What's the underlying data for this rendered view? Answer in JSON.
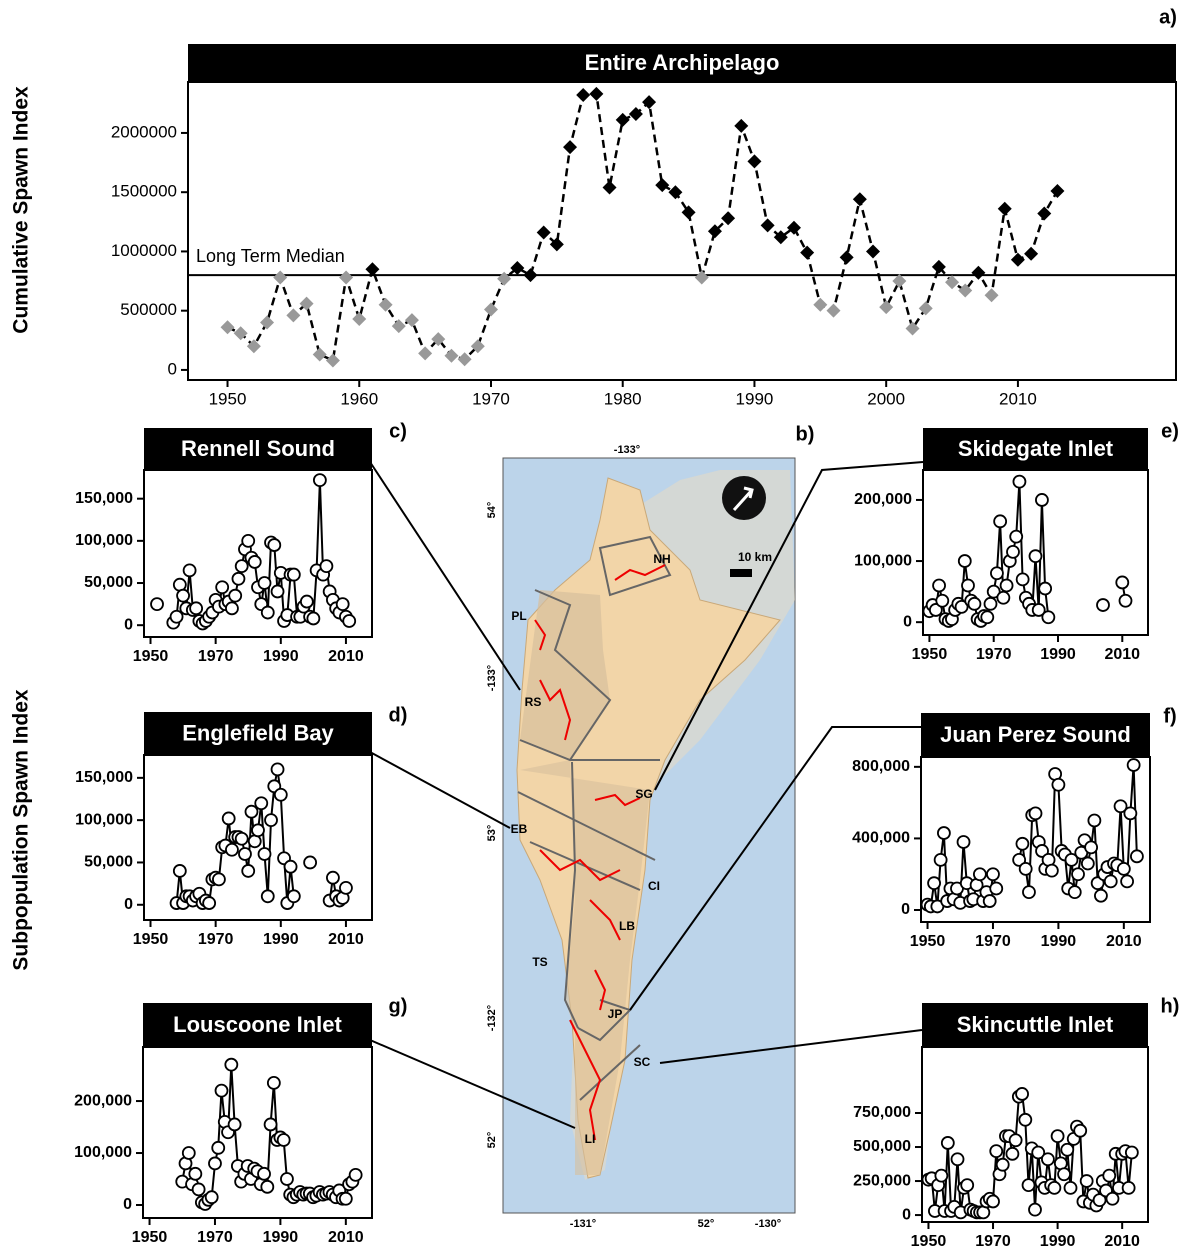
{
  "chart_data": [
    {
      "type": "line",
      "panel_label": "a)",
      "title": "Entire Archipelago",
      "ylabel": "Cumulative Spawn Index",
      "annotation": "Long Term Median",
      "median": 800000,
      "color": "#000000",
      "below_median_color": "#999999",
      "marker": "diamond",
      "line_style": "dashed",
      "x": [
        1950,
        1951,
        1952,
        1953,
        1954,
        1955,
        1956,
        1957,
        1958,
        1959,
        1960,
        1961,
        1962,
        1963,
        1964,
        1965,
        1966,
        1967,
        1968,
        1969,
        1970,
        1971,
        1972,
        1973,
        1974,
        1975,
        1976,
        1977,
        1978,
        1979,
        1980,
        1981,
        1982,
        1983,
        1984,
        1985,
        1986,
        1987,
        1988,
        1989,
        1990,
        1991,
        1992,
        1993,
        1994,
        1995,
        1996,
        1997,
        1998,
        1999,
        2000,
        2001,
        2002,
        2003,
        2004,
        2005,
        2006,
        2007,
        2008,
        2009,
        2010,
        2011,
        2012,
        2013
      ],
      "values": [
        360000,
        310000,
        200000,
        400000,
        780000,
        460000,
        560000,
        130000,
        80000,
        780000,
        430000,
        850000,
        550000,
        370000,
        420000,
        140000,
        260000,
        120000,
        90000,
        200000,
        510000,
        770000,
        860000,
        800000,
        1160000,
        1060000,
        1880000,
        2320000,
        2330000,
        1540000,
        2110000,
        2160000,
        2260000,
        1560000,
        1500000,
        1330000,
        780000,
        1170000,
        1280000,
        2060000,
        1760000,
        1220000,
        1120000,
        1200000,
        990000,
        550000,
        500000,
        950000,
        1440000,
        1000000,
        530000,
        750000,
        350000,
        520000,
        870000,
        740000,
        670000,
        820000,
        630000,
        1360000,
        930000,
        980000,
        1320000,
        1510000
      ],
      "xlim": [
        1947,
        2022
      ],
      "xticks": [
        1950,
        1960,
        1970,
        1980,
        1990,
        2000,
        2010
      ],
      "ylim": [
        -85000,
        2430000
      ],
      "yticks": [
        0,
        500000,
        1000000,
        1500000,
        2000000
      ]
    },
    {
      "type": "line",
      "panel_label": "c)",
      "title": "Rennell Sound",
      "color": "#000000",
      "marker": "circle",
      "marker_fill": "#ffffff",
      "x": [
        1952,
        1953,
        1957,
        1958,
        1959,
        1960,
        1961,
        1962,
        1963,
        1964,
        1965,
        1966,
        1967,
        1968,
        1969,
        1970,
        1971,
        1972,
        1973,
        1974,
        1975,
        1976,
        1977,
        1978,
        1979,
        1980,
        1981,
        1982,
        1983,
        1984,
        1985,
        1986,
        1987,
        1988,
        1989,
        1990,
        1991,
        1992,
        1993,
        1994,
        1995,
        1996,
        1997,
        1998,
        1999,
        2000,
        2001,
        2002,
        2003,
        2004,
        2005,
        2006,
        2007,
        2008,
        2009,
        2010,
        2011
      ],
      "values": [
        25000,
        null,
        3000,
        10000,
        48000,
        35000,
        20000,
        65000,
        18000,
        20000,
        5000,
        2000,
        5000,
        10000,
        15000,
        30000,
        22000,
        45000,
        25000,
        28000,
        20000,
        35000,
        55000,
        70000,
        90000,
        100000,
        80000,
        75000,
        45000,
        25000,
        50000,
        15000,
        98000,
        95000,
        40000,
        62000,
        5000,
        12000,
        60000,
        60000,
        10000,
        10000,
        22000,
        28000,
        10000,
        8000,
        65000,
        172000,
        60000,
        70000,
        40000,
        30000,
        20000,
        15000,
        25000,
        10000,
        5000
      ],
      "xlim": [
        1948,
        2018
      ],
      "xticks": [
        1950,
        1970,
        1990,
        2010
      ],
      "ylim": [
        -14000,
        184000
      ],
      "yticks": [
        0,
        {
          "value": 50000,
          "label": "50,000"
        },
        {
          "value": 100000,
          "label": "100,000"
        },
        {
          "value": 150000,
          "label": "150,000"
        }
      ]
    },
    {
      "type": "line",
      "panel_label": "d)",
      "title": "Englefield Bay",
      "color": "#000000",
      "marker": "circle",
      "marker_fill": "#ffffff",
      "x": [
        1958,
        1959,
        1960,
        1961,
        1962,
        1963,
        1964,
        1965,
        1966,
        1967,
        1968,
        1969,
        1970,
        1971,
        1972,
        1973,
        1974,
        1975,
        1976,
        1977,
        1978,
        1979,
        1980,
        1981,
        1982,
        1983,
        1984,
        1985,
        1986,
        1987,
        1988,
        1989,
        1990,
        1991,
        1992,
        1993,
        1994,
        1995,
        1999,
        2000,
        2005,
        2006,
        2007,
        2008,
        2009,
        2010
      ],
      "values": [
        2000,
        40000,
        2000,
        10000,
        10000,
        5000,
        10000,
        13000,
        2000,
        5000,
        2000,
        30000,
        32000,
        30000,
        68000,
        70000,
        102000,
        65000,
        80000,
        80000,
        78000,
        60000,
        40000,
        110000,
        75000,
        88000,
        120000,
        60000,
        10000,
        100000,
        140000,
        160000,
        130000,
        55000,
        2000,
        45000,
        10000,
        null,
        50000,
        null,
        5000,
        32000,
        10000,
        5000,
        8000,
        20000
      ],
      "xlim": [
        1948,
        2018
      ],
      "xticks": [
        1950,
        1970,
        1990,
        2010
      ],
      "ylim": [
        -18000,
        177000
      ],
      "yticks": [
        0,
        {
          "value": 50000,
          "label": "50,000"
        },
        {
          "value": 100000,
          "label": "100,000"
        },
        {
          "value": 150000,
          "label": "150,000"
        }
      ]
    },
    {
      "type": "line",
      "panel_label": "e)",
      "title": "Skidegate Inlet",
      "color": "#000000",
      "marker": "circle",
      "marker_fill": "#ffffff",
      "x": [
        1950,
        1951,
        1952,
        1953,
        1954,
        1955,
        1956,
        1957,
        1958,
        1959,
        1960,
        1961,
        1962,
        1963,
        1964,
        1965,
        1966,
        1967,
        1968,
        1969,
        1970,
        1971,
        1972,
        1973,
        1974,
        1975,
        1976,
        1977,
        1978,
        1979,
        1980,
        1981,
        1982,
        1983,
        1984,
        1985,
        1986,
        1987,
        1988,
        2004,
        2005,
        2010,
        2011
      ],
      "values": [
        18000,
        28000,
        20000,
        60000,
        35000,
        5000,
        2000,
        5000,
        20000,
        30000,
        25000,
        100000,
        60000,
        35000,
        30000,
        5000,
        2000,
        10000,
        8000,
        30000,
        50000,
        80000,
        165000,
        40000,
        60000,
        100000,
        115000,
        140000,
        230000,
        70000,
        40000,
        30000,
        20000,
        108000,
        20000,
        200000,
        55000,
        8000,
        null,
        28000,
        null,
        65000,
        35000
      ],
      "xlim": [
        1948,
        2018
      ],
      "xticks": [
        1950,
        1970,
        1990,
        2010
      ],
      "ylim": [
        -21000,
        249000
      ],
      "yticks": [
        0,
        {
          "value": 100000,
          "label": "100,000"
        },
        {
          "value": 200000,
          "label": "200,000"
        }
      ]
    },
    {
      "type": "line",
      "panel_label": "f)",
      "title": "Juan Perez Sound",
      "color": "#000000",
      "marker": "circle",
      "marker_fill": "#ffffff",
      "x": [
        1950,
        1951,
        1952,
        1953,
        1954,
        1955,
        1956,
        1957,
        1958,
        1959,
        1960,
        1961,
        1962,
        1963,
        1964,
        1965,
        1966,
        1967,
        1968,
        1969,
        1970,
        1971,
        1972,
        1978,
        1979,
        1980,
        1981,
        1982,
        1983,
        1984,
        1985,
        1986,
        1987,
        1988,
        1989,
        1990,
        1991,
        1992,
        1993,
        1994,
        1995,
        1996,
        1997,
        1998,
        1999,
        2000,
        2001,
        2002,
        2003,
        2004,
        2005,
        2006,
        2007,
        2008,
        2009,
        2010,
        2011,
        2012,
        2013,
        2014
      ],
      "values": [
        30000,
        20000,
        150000,
        20000,
        280000,
        430000,
        50000,
        120000,
        60000,
        120000,
        40000,
        380000,
        150000,
        50000,
        60000,
        140000,
        200000,
        50000,
        100000,
        50000,
        200000,
        120000,
        null,
        280000,
        370000,
        230000,
        100000,
        530000,
        540000,
        380000,
        330000,
        230000,
        280000,
        220000,
        760000,
        700000,
        330000,
        310000,
        120000,
        280000,
        100000,
        200000,
        320000,
        390000,
        260000,
        350000,
        500000,
        150000,
        80000,
        200000,
        240000,
        160000,
        260000,
        250000,
        580000,
        230000,
        160000,
        540000,
        810000,
        300000
      ],
      "xlim": [
        1948,
        2018
      ],
      "xticks": [
        1950,
        1970,
        1990,
        2010
      ],
      "ylim": [
        -67000,
        855000
      ],
      "yticks": [
        0,
        {
          "value": 400000,
          "label": "400,000"
        },
        {
          "value": 800000,
          "label": "800,000"
        }
      ]
    },
    {
      "type": "line",
      "panel_label": "g)",
      "title": "Louscoone Inlet",
      "color": "#000000",
      "marker": "circle",
      "marker_fill": "#ffffff",
      "x": [
        1960,
        1961,
        1962,
        1963,
        1964,
        1965,
        1966,
        1967,
        1968,
        1969,
        1970,
        1971,
        1972,
        1973,
        1974,
        1975,
        1976,
        1977,
        1978,
        1979,
        1980,
        1981,
        1982,
        1983,
        1984,
        1985,
        1986,
        1987,
        1988,
        1989,
        1990,
        1991,
        1992,
        1993,
        1994,
        1995,
        1996,
        1997,
        1998,
        1999,
        2000,
        2001,
        2002,
        2003,
        2004,
        2005,
        2006,
        2007,
        2008,
        2009,
        2010,
        2011,
        2012,
        2013
      ],
      "values": [
        45000,
        80000,
        100000,
        40000,
        60000,
        30000,
        5000,
        2000,
        10000,
        15000,
        80000,
        110000,
        220000,
        160000,
        140000,
        270000,
        155000,
        75000,
        45000,
        60000,
        75000,
        50000,
        70000,
        65000,
        40000,
        60000,
        35000,
        155000,
        235000,
        125000,
        130000,
        125000,
        50000,
        20000,
        15000,
        20000,
        25000,
        20000,
        22000,
        22000,
        15000,
        18000,
        25000,
        20000,
        22000,
        25000,
        20000,
        15000,
        28000,
        12000,
        12000,
        40000,
        45000,
        58000
      ],
      "xlim": [
        1948,
        2018
      ],
      "xticks": [
        1950,
        1970,
        1990,
        2010
      ],
      "ylim": [
        -25000,
        304000
      ],
      "yticks": [
        0,
        {
          "value": 100000,
          "label": "100,000"
        },
        {
          "value": 200000,
          "label": "200,000"
        }
      ]
    },
    {
      "type": "line",
      "panel_label": "h)",
      "title": "Skincuttle Inlet",
      "color": "#000000",
      "marker": "circle",
      "marker_fill": "#ffffff",
      "x": [
        1950,
        1951,
        1952,
        1953,
        1954,
        1955,
        1956,
        1957,
        1958,
        1959,
        1960,
        1961,
        1962,
        1963,
        1964,
        1965,
        1966,
        1967,
        1968,
        1969,
        1970,
        1971,
        1972,
        1973,
        1974,
        1975,
        1976,
        1977,
        1978,
        1979,
        1980,
        1981,
        1982,
        1983,
        1984,
        1985,
        1986,
        1987,
        1988,
        1989,
        1990,
        1991,
        1992,
        1993,
        1994,
        1995,
        1996,
        1997,
        1998,
        1999,
        2000,
        2001,
        2002,
        2003,
        2004,
        2005,
        2006,
        2007,
        2008,
        2009,
        2010,
        2011,
        2012,
        2013
      ],
      "values": [
        260000,
        270000,
        30000,
        220000,
        290000,
        30000,
        530000,
        30000,
        60000,
        410000,
        20000,
        200000,
        220000,
        40000,
        30000,
        20000,
        20000,
        20000,
        100000,
        120000,
        100000,
        470000,
        300000,
        370000,
        580000,
        580000,
        450000,
        550000,
        870000,
        890000,
        700000,
        220000,
        490000,
        40000,
        460000,
        240000,
        200000,
        410000,
        220000,
        200000,
        580000,
        380000,
        300000,
        480000,
        200000,
        560000,
        650000,
        620000,
        100000,
        250000,
        90000,
        150000,
        70000,
        110000,
        250000,
        180000,
        290000,
        120000,
        450000,
        200000,
        450000,
        470000,
        200000,
        460000
      ],
      "xlim": [
        1948,
        2018
      ],
      "xticks": [
        1950,
        1970,
        1990,
        2010
      ],
      "ylim": [
        -51000,
        1235000
      ],
      "yticks": [
        0,
        {
          "value": 250000,
          "label": "250,000"
        },
        {
          "value": 500000,
          "label": "500,000"
        },
        {
          "value": 750000,
          "label": "750,000"
        }
      ]
    }
  ],
  "figure": {
    "shared_ylabel": "Subpopulation Spawn Index"
  },
  "map": {
    "panel_label": "b)",
    "scale_label": "10 km",
    "region_labels": [
      "NH",
      "PL",
      "RS",
      "SG",
      "EB",
      "CI",
      "LB",
      "TS",
      "JP",
      "SC",
      "LI"
    ],
    "graticule_labels": [
      "-133°",
      "54°",
      "-133°",
      "53°",
      "-132°",
      "52°",
      "-131°",
      "52°",
      "-130°"
    ]
  }
}
